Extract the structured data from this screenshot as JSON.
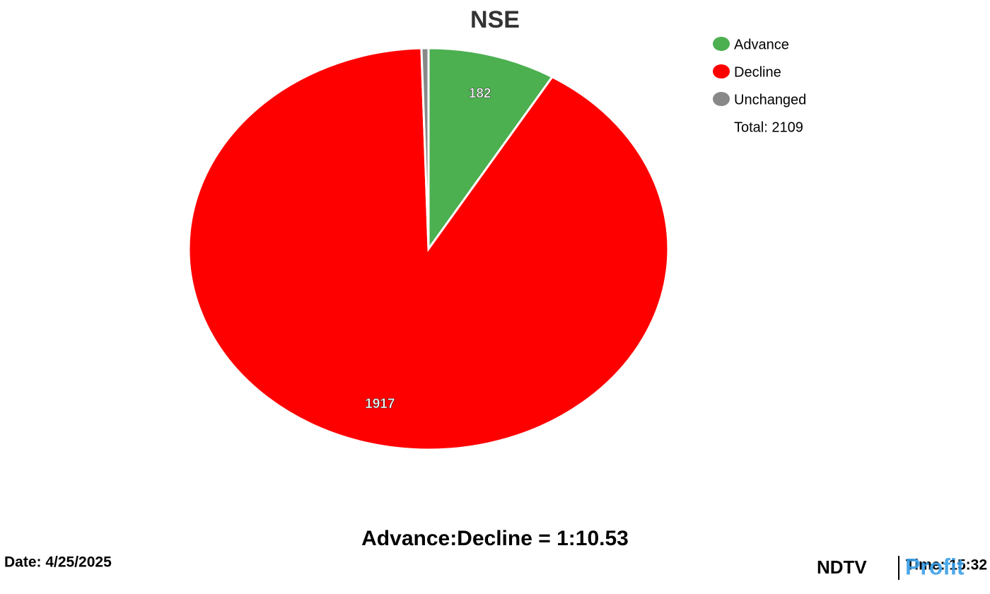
{
  "chart_data": {
    "type": "pie",
    "title": "NSE",
    "categories": [
      "Advance",
      "Decline",
      "Unchanged"
    ],
    "values": [
      182,
      1917,
      10
    ],
    "colors": [
      "#4caf50",
      "#ff0000",
      "#888888"
    ],
    "legend": "top-right",
    "total_label": "Total: 2109",
    "ratio_label": "Advance:Decline = 1:10.53",
    "date_label": "Date: 4/25/2025",
    "time_label": "Time: 15:32",
    "logo": [
      "NDTV",
      "Profit"
    ]
  }
}
